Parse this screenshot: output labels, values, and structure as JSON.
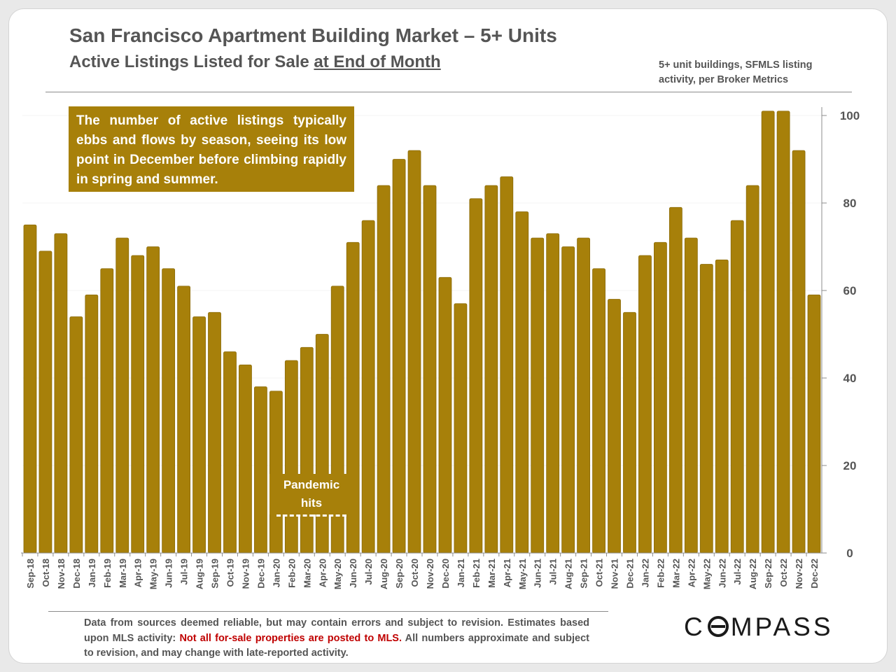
{
  "header": {
    "title": "San Francisco Apartment Building Market – 5+ Units",
    "subtitle_prefix": "Active Listings Listed for Sale ",
    "subtitle_underlined": "at End of Month",
    "source_note": "5+ unit buildings, SFMLS listing activity, per Broker Metrics"
  },
  "annotations": {
    "callout": "The number of active listings typically ebbs and flows by season, seeing its low point in December before climbing rapidly in spring and summer.",
    "pandemic_line1": "Pandemic",
    "pandemic_line2": "hits"
  },
  "footer": {
    "disclaimer_part1": "Data from sources deemed reliable, but may contain errors and subject to revision. Estimates based upon MLS activity: ",
    "disclaimer_red": "Not all for-sale properties are posted to MLS.",
    "disclaimer_part2": " All numbers approximate and subject to revision, and may change with late-reported activity.",
    "logo_pre": "C",
    "logo_post": "MPASS",
    "logo_text": "COMPASS"
  },
  "colors": {
    "bar": "#a7800a",
    "bar_stroke": "#8a6a08",
    "accent_red": "#c00000",
    "text": "#555555"
  },
  "chart_data": {
    "type": "bar",
    "title": "San Francisco Apartment Building Market – 5+ Units",
    "subtitle": "Active Listings Listed for Sale at End of Month",
    "xlabel": "",
    "ylabel": "",
    "ylim": [
      0,
      100
    ],
    "yticks": [
      0,
      20,
      40,
      60,
      80,
      100
    ],
    "y_axis_side": "right",
    "grid": false,
    "categories": [
      "Sep-18",
      "Oct-18",
      "Nov-18",
      "Dec-18",
      "Jan-19",
      "Feb-19",
      "Mar-19",
      "Apr-19",
      "May-19",
      "Jun-19",
      "Jul-19",
      "Aug-19",
      "Sep-19",
      "Oct-19",
      "Nov-19",
      "Dec-19",
      "Jan-20",
      "Feb-20",
      "Mar-20",
      "Apr-20",
      "May-20",
      "Jun-20",
      "Jul-20",
      "Aug-20",
      "Sep-20",
      "Oct-20",
      "Nov-20",
      "Dec-20",
      "Jan-21",
      "Feb-21",
      "Mar-21",
      "Apr-21",
      "May-21",
      "Jun-21",
      "Jul-21",
      "Aug-21",
      "Sep-21",
      "Oct-21",
      "Nov-21",
      "Dec-21",
      "Jan-22",
      "Feb-22",
      "Mar-22",
      "Apr-22",
      "May-22",
      "Jun-22",
      "Jul-22",
      "Aug-22",
      "Sep-22",
      "Oct-22",
      "Nov-22",
      "Dec-22"
    ],
    "values": [
      75,
      69,
      73,
      54,
      59,
      65,
      72,
      68,
      70,
      65,
      61,
      54,
      55,
      46,
      43,
      38,
      37,
      44,
      47,
      50,
      61,
      71,
      76,
      84,
      90,
      92,
      84,
      63,
      57,
      81,
      84,
      86,
      78,
      72,
      73,
      70,
      72,
      65,
      58,
      55,
      68,
      71,
      79,
      72,
      66,
      67,
      76,
      84,
      101,
      101,
      92,
      59
    ]
  }
}
